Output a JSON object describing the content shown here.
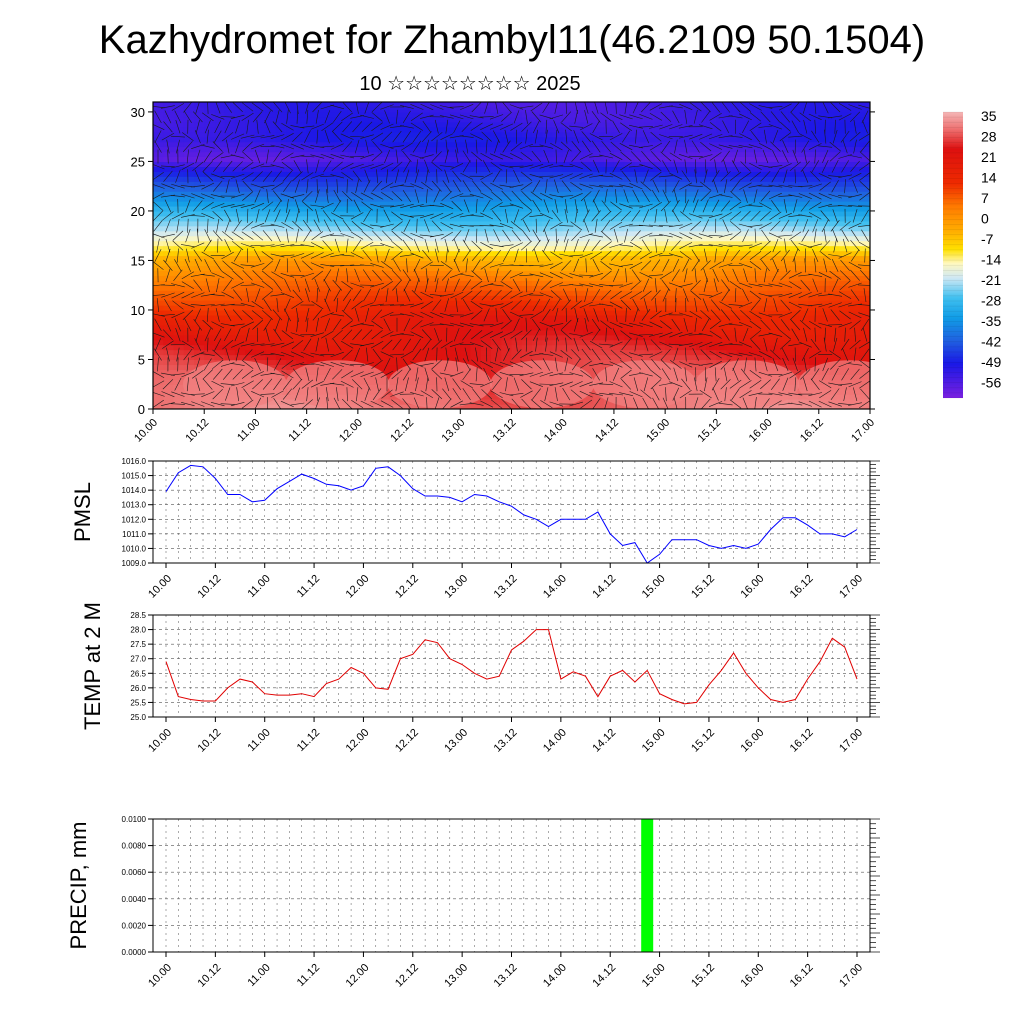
{
  "title": "Kazhydromet for Zhambyl11(46.2109 50.1504)",
  "subtitle": "10 ☆☆☆☆☆☆☆☆ 2025",
  "time_ticks": [
    "10.00",
    "10.12",
    "11.00",
    "11.12",
    "12.00",
    "12.12",
    "13.00",
    "13.12",
    "14.00",
    "14.12",
    "15.00",
    "15.12",
    "16.00",
    "16.12",
    "17.00"
  ],
  "chart_data": [
    {
      "type": "heatmap",
      "name": "temperature-cross-section",
      "x_range": [
        0,
        7
      ],
      "y_range": [
        0,
        31
      ],
      "y_ticks": [
        0,
        5,
        10,
        15,
        20,
        25,
        30
      ],
      "colorbar_labels": [
        "35",
        "28",
        "21",
        "14",
        "7",
        "0",
        "-7",
        "-14",
        "-21",
        "-28",
        "-35",
        "-42",
        "-49",
        "-56"
      ],
      "colorbar_range": [
        -63,
        38
      ],
      "profile": [
        [
          0,
          33
        ],
        [
          3,
          30
        ],
        [
          6,
          27
        ],
        [
          9,
          23
        ],
        [
          11,
          17
        ],
        [
          13,
          10
        ],
        [
          15,
          3
        ],
        [
          16,
          -6
        ],
        [
          17,
          -12
        ],
        [
          18,
          -18
        ],
        [
          20,
          -28
        ],
        [
          22,
          -40
        ],
        [
          24,
          -52
        ],
        [
          25,
          -58
        ],
        [
          27,
          -53
        ],
        [
          29,
          -55
        ],
        [
          31,
          -56
        ]
      ],
      "wind_vectors": true
    },
    {
      "type": "line",
      "name": "pmsl",
      "ylabel": "PMSL",
      "ylim": [
        1009,
        1016
      ],
      "y_ticks": [
        "1009.0",
        "1010.0",
        "1011.0",
        "1012.0",
        "1013.0",
        "1014.0",
        "1015.0",
        "1016.0"
      ],
      "x_range": [
        0,
        7
      ],
      "color": "#0000ff",
      "x": [
        0.0,
        0.125,
        0.25,
        0.375,
        0.5,
        0.625,
        0.75,
        0.875,
        1.0,
        1.125,
        1.25,
        1.375,
        1.5,
        1.625,
        1.75,
        1.875,
        2.0,
        2.125,
        2.25,
        2.375,
        2.5,
        2.625,
        2.75,
        2.875,
        3.0,
        3.125,
        3.25,
        3.375,
        3.5,
        3.625,
        3.75,
        3.875,
        4.0,
        4.125,
        4.25,
        4.375,
        4.5,
        4.625,
        4.75,
        4.875,
        5.0,
        5.125,
        5.25,
        5.375,
        5.5,
        5.625,
        5.75,
        5.875,
        6.0,
        6.125,
        6.25,
        6.375,
        6.5,
        6.625,
        6.75,
        6.875,
        7.0
      ],
      "values": [
        1013.9,
        1015.2,
        1015.7,
        1015.6,
        1014.8,
        1013.7,
        1013.7,
        1013.2,
        1013.3,
        1014.1,
        1014.6,
        1015.1,
        1014.8,
        1014.4,
        1014.3,
        1014.0,
        1014.3,
        1015.5,
        1015.6,
        1015.0,
        1014.1,
        1013.6,
        1013.6,
        1013.5,
        1013.2,
        1013.7,
        1013.6,
        1013.2,
        1012.9,
        1012.3,
        1012.0,
        1011.5,
        1012.0,
        1012.0,
        1012.0,
        1012.5,
        1011.0,
        1010.2,
        1010.4,
        1009.0,
        1009.6,
        1010.6,
        1010.6,
        1010.6,
        1010.2,
        1010.0,
        1010.2,
        1010.0,
        1010.3,
        1011.3,
        1012.1,
        1012.1,
        1011.6,
        1011.0,
        1011.0,
        1010.8,
        1011.3
      ]
    },
    {
      "type": "line",
      "name": "temp-2m",
      "ylabel": "TEMP at 2 M",
      "ylim": [
        25,
        28.5
      ],
      "y_ticks": [
        "25.0",
        "25.5",
        "26.0",
        "26.5",
        "27.0",
        "27.5",
        "28.0",
        "28.5"
      ],
      "x_range": [
        0,
        7
      ],
      "color": "#e00000",
      "x": [
        0.0,
        0.125,
        0.25,
        0.375,
        0.5,
        0.625,
        0.75,
        0.875,
        1.0,
        1.125,
        1.25,
        1.375,
        1.5,
        1.625,
        1.75,
        1.875,
        2.0,
        2.125,
        2.25,
        2.375,
        2.5,
        2.625,
        2.75,
        2.875,
        3.0,
        3.125,
        3.25,
        3.375,
        3.5,
        3.625,
        3.75,
        3.875,
        4.0,
        4.125,
        4.25,
        4.375,
        4.5,
        4.625,
        4.75,
        4.875,
        5.0,
        5.125,
        5.25,
        5.375,
        5.5,
        5.625,
        5.75,
        5.875,
        6.0,
        6.125,
        6.25,
        6.375,
        6.5,
        6.625,
        6.75,
        6.875,
        7.0
      ],
      "values": [
        26.9,
        25.7,
        25.6,
        25.55,
        25.55,
        26.0,
        26.3,
        26.2,
        25.8,
        25.75,
        25.75,
        25.8,
        25.7,
        26.15,
        26.3,
        26.7,
        26.5,
        26.0,
        25.95,
        27.0,
        27.15,
        27.65,
        27.55,
        27.0,
        26.8,
        26.5,
        26.3,
        26.4,
        27.3,
        27.6,
        28.0,
        28.0,
        26.3,
        26.55,
        26.4,
        25.7,
        26.4,
        26.6,
        26.2,
        26.6,
        25.8,
        25.6,
        25.45,
        25.5,
        26.1,
        26.6,
        27.2,
        26.5,
        26.0,
        25.6,
        25.5,
        25.6,
        26.3,
        26.9,
        27.7,
        27.4,
        26.3
      ]
    },
    {
      "type": "bar",
      "name": "precip",
      "ylabel": "PRECIP, mm",
      "ylim": [
        0,
        0.01
      ],
      "y_ticks": [
        "0.0000",
        "0.0020",
        "0.0040",
        "0.0060",
        "0.0080",
        "0.0100"
      ],
      "x_range": [
        0,
        7
      ],
      "color": "#00ff00",
      "bars": [
        {
          "x": 4.875,
          "value": 0.01
        }
      ]
    }
  ]
}
